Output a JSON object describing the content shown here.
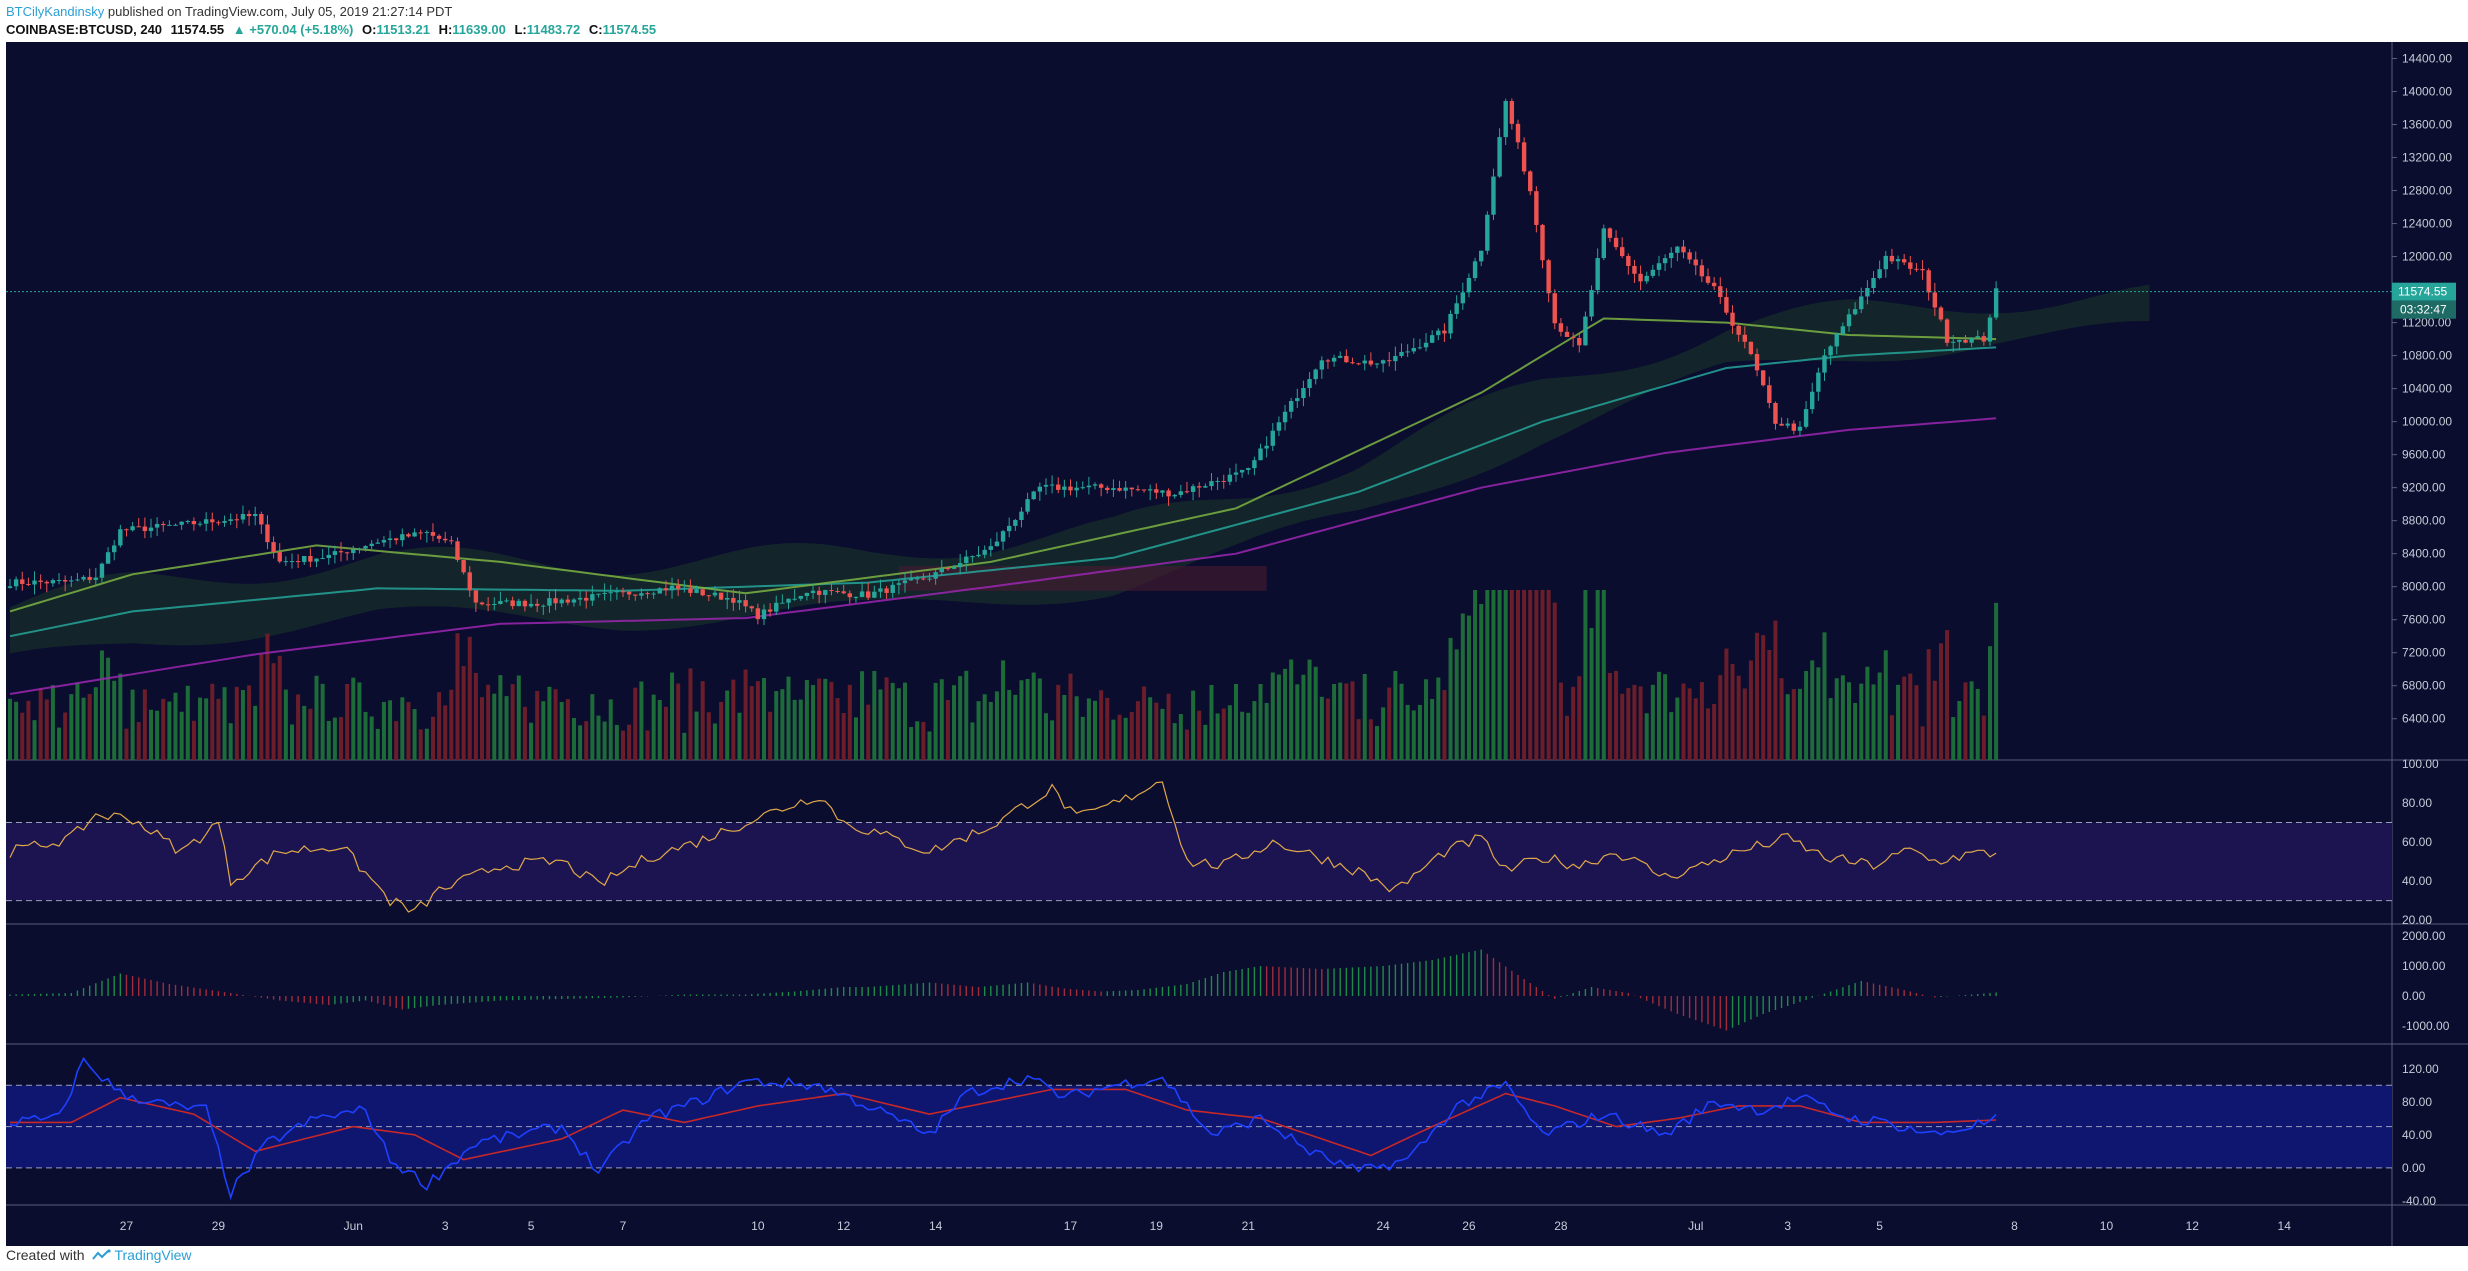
{
  "header": {
    "author": "BTCilyKandinsky",
    "published_text": "published on TradingView.com, July 05, 2019 21:27:14 PDT",
    "symbol": "COINBASE:BTCUSD, 240",
    "last": "11574.55",
    "change": "▲ +570.04 (+5.18%)",
    "open_label": "O:",
    "open": "11513.21",
    "high_label": "H:",
    "high": "11639.00",
    "low_label": "L:",
    "low": "11483.72",
    "close_label": "C:",
    "close": "11574.55"
  },
  "footer": {
    "created_with": "Created with",
    "brand": "TradingView"
  },
  "colors": {
    "background": "#0a0d2e",
    "up": "#26a69a",
    "down": "#ef5350",
    "vol_up": "#1e6b3a",
    "vol_down": "#6b1e2a",
    "rsi": "#e0a84a",
    "ma_purple": "#9c27b0",
    "ma_green": "#7cb342",
    "ma_teal": "#26a69a",
    "osc_blue": "#1e40ff",
    "osc_red": "#c62828",
    "price_tag": "#26a69a"
  },
  "chart_data": {
    "type": "candlestick",
    "price_axis": {
      "ylim": [
        5900,
        14600
      ],
      "ticks": [
        "14400.00",
        "14000.00",
        "13600.00",
        "13200.00",
        "12800.00",
        "12400.00",
        "12000.00",
        "11600.00",
        "11200.00",
        "10800.00",
        "10400.00",
        "10000.00",
        "9600.00",
        "9200.00",
        "8800.00",
        "8400.00",
        "8000.00",
        "7600.00",
        "7200.00",
        "6800.00",
        "6400.00"
      ]
    },
    "x_labels": [
      "27",
      "29",
      "Jun",
      "3",
      "5",
      "7",
      "10",
      "12",
      "14",
      "17",
      "19",
      "21",
      "24",
      "26",
      "28",
      "Jul",
      "3",
      "5",
      "8",
      "10",
      "12",
      "14"
    ],
    "last_price_tag": "11574.55",
    "countdown_tag": "03:32:47",
    "price_anchors": [
      {
        "i": 0,
        "p": 8050
      },
      {
        "i": 10,
        "p": 8060
      },
      {
        "i": 14,
        "p": 8120
      },
      {
        "i": 18,
        "p": 8680
      },
      {
        "i": 28,
        "p": 8750
      },
      {
        "i": 40,
        "p": 8860
      },
      {
        "i": 44,
        "p": 8300
      },
      {
        "i": 52,
        "p": 8370
      },
      {
        "i": 60,
        "p": 8550
      },
      {
        "i": 68,
        "p": 8650
      },
      {
        "i": 72,
        "p": 8510
      },
      {
        "i": 76,
        "p": 7800
      },
      {
        "i": 86,
        "p": 7800
      },
      {
        "i": 96,
        "p": 7880
      },
      {
        "i": 108,
        "p": 7990
      },
      {
        "i": 118,
        "p": 7850
      },
      {
        "i": 122,
        "p": 7650
      },
      {
        "i": 130,
        "p": 7950
      },
      {
        "i": 140,
        "p": 7900
      },
      {
        "i": 150,
        "p": 8120
      },
      {
        "i": 160,
        "p": 8470
      },
      {
        "i": 168,
        "p": 9200
      },
      {
        "i": 180,
        "p": 9200
      },
      {
        "i": 190,
        "p": 9130
      },
      {
        "i": 202,
        "p": 9400
      },
      {
        "i": 208,
        "p": 10100
      },
      {
        "i": 214,
        "p": 10780
      },
      {
        "i": 224,
        "p": 10700
      },
      {
        "i": 234,
        "p": 11100
      },
      {
        "i": 240,
        "p": 12100
      },
      {
        "i": 244,
        "p": 13880
      },
      {
        "i": 248,
        "p": 12800
      },
      {
        "i": 252,
        "p": 11200
      },
      {
        "i": 256,
        "p": 10900
      },
      {
        "i": 260,
        "p": 12300
      },
      {
        "i": 266,
        "p": 11700
      },
      {
        "i": 272,
        "p": 12100
      },
      {
        "i": 278,
        "p": 11600
      },
      {
        "i": 284,
        "p": 10800
      },
      {
        "i": 288,
        "p": 10000
      },
      {
        "i": 292,
        "p": 9900
      },
      {
        "i": 296,
        "p": 10800
      },
      {
        "i": 302,
        "p": 11500
      },
      {
        "i": 306,
        "p": 12000
      },
      {
        "i": 312,
        "p": 11800
      },
      {
        "i": 316,
        "p": 11000
      },
      {
        "i": 322,
        "p": 11000
      },
      {
        "i": 324,
        "p": 11575
      }
    ],
    "date_anchors": [
      {
        "i": 19,
        "d": "27"
      },
      {
        "i": 34,
        "d": "29"
      },
      {
        "i": 56,
        "d": "Jun"
      },
      {
        "i": 71,
        "d": "3"
      },
      {
        "i": 85,
        "d": "5"
      },
      {
        "i": 100,
        "d": "7"
      },
      {
        "i": 122,
        "d": "10"
      },
      {
        "i": 136,
        "d": "12"
      },
      {
        "i": 151,
        "d": "14"
      },
      {
        "i": 173,
        "d": "17"
      },
      {
        "i": 187,
        "d": "19"
      },
      {
        "i": 202,
        "d": "21"
      },
      {
        "i": 224,
        "d": "24"
      },
      {
        "i": 238,
        "d": "26"
      },
      {
        "i": 253,
        "d": "28"
      },
      {
        "i": 275,
        "d": "Jul"
      },
      {
        "i": 290,
        "d": "3"
      },
      {
        "i": 305,
        "d": "5"
      },
      {
        "i": 327,
        "d": "8"
      },
      {
        "i": 342,
        "d": "10"
      },
      {
        "i": 356,
        "d": "12"
      },
      {
        "i": 371,
        "d": "14"
      }
    ],
    "moving_averages": [
      {
        "color": "#9c27b0",
        "points": [
          [
            0,
            6700
          ],
          [
            40,
            7180
          ],
          [
            80,
            7550
          ],
          [
            120,
            7620
          ],
          [
            160,
            8000
          ],
          [
            200,
            8400
          ],
          [
            240,
            9200
          ],
          [
            270,
            9620
          ],
          [
            300,
            9900
          ],
          [
            324,
            10040
          ]
        ]
      },
      {
        "color": "#26a69a",
        "points": [
          [
            0,
            7400
          ],
          [
            20,
            7700
          ],
          [
            60,
            7980
          ],
          [
            100,
            7950
          ],
          [
            140,
            8050
          ],
          [
            180,
            8350
          ],
          [
            220,
            9150
          ],
          [
            250,
            10000
          ],
          [
            280,
            10650
          ],
          [
            300,
            10800
          ],
          [
            324,
            10900
          ]
        ]
      },
      {
        "color": "#7cb342",
        "points": [
          [
            0,
            7700
          ],
          [
            20,
            8150
          ],
          [
            50,
            8500
          ],
          [
            80,
            8300
          ],
          [
            120,
            7920
          ],
          [
            160,
            8300
          ],
          [
            200,
            8950
          ],
          [
            240,
            10350
          ],
          [
            260,
            11250
          ],
          [
            280,
            11200
          ],
          [
            300,
            11050
          ],
          [
            324,
            11000
          ]
        ]
      }
    ],
    "volume_max": 10.0,
    "rsi": {
      "ylim": [
        18,
        102
      ],
      "ticks": [
        "100.00",
        "80.00",
        "60.00",
        "40.00",
        "20.00"
      ],
      "bands": [
        70,
        30
      ],
      "anchors": [
        {
          "i": 0,
          "v": 55
        },
        {
          "i": 10,
          "v": 62
        },
        {
          "i": 14,
          "v": 74
        },
        {
          "i": 20,
          "v": 72
        },
        {
          "i": 28,
          "v": 55
        },
        {
          "i": 34,
          "v": 70
        },
        {
          "i": 36,
          "v": 40
        },
        {
          "i": 44,
          "v": 55
        },
        {
          "i": 54,
          "v": 58
        },
        {
          "i": 58,
          "v": 44
        },
        {
          "i": 62,
          "v": 30
        },
        {
          "i": 66,
          "v": 24
        },
        {
          "i": 70,
          "v": 35
        },
        {
          "i": 80,
          "v": 48
        },
        {
          "i": 90,
          "v": 50
        },
        {
          "i": 96,
          "v": 38
        },
        {
          "i": 104,
          "v": 52
        },
        {
          "i": 112,
          "v": 60
        },
        {
          "i": 124,
          "v": 75
        },
        {
          "i": 132,
          "v": 84
        },
        {
          "i": 136,
          "v": 70
        },
        {
          "i": 142,
          "v": 64
        },
        {
          "i": 150,
          "v": 55
        },
        {
          "i": 160,
          "v": 68
        },
        {
          "i": 166,
          "v": 80
        },
        {
          "i": 170,
          "v": 87
        },
        {
          "i": 174,
          "v": 72
        },
        {
          "i": 182,
          "v": 82
        },
        {
          "i": 188,
          "v": 92
        },
        {
          "i": 192,
          "v": 50
        },
        {
          "i": 198,
          "v": 48
        },
        {
          "i": 206,
          "v": 60
        },
        {
          "i": 212,
          "v": 54
        },
        {
          "i": 220,
          "v": 45
        },
        {
          "i": 226,
          "v": 35
        },
        {
          "i": 234,
          "v": 55
        },
        {
          "i": 240,
          "v": 62
        },
        {
          "i": 244,
          "v": 45
        },
        {
          "i": 250,
          "v": 52
        },
        {
          "i": 256,
          "v": 48
        },
        {
          "i": 262,
          "v": 55
        },
        {
          "i": 270,
          "v": 42
        },
        {
          "i": 276,
          "v": 48
        },
        {
          "i": 282,
          "v": 55
        },
        {
          "i": 290,
          "v": 62
        },
        {
          "i": 296,
          "v": 52
        },
        {
          "i": 304,
          "v": 48
        },
        {
          "i": 310,
          "v": 56
        },
        {
          "i": 314,
          "v": 50
        },
        {
          "i": 320,
          "v": 54
        }
      ]
    },
    "macd_histogram": {
      "ylim": [
        -1600,
        2400
      ],
      "ticks": [
        "2000.00",
        "1000.00",
        "0.00",
        "-1000.00"
      ],
      "anchors": [
        {
          "i": 0,
          "v": 50
        },
        {
          "i": 10,
          "v": 100
        },
        {
          "i": 18,
          "v": 750
        },
        {
          "i": 26,
          "v": 400
        },
        {
          "i": 36,
          "v": 100
        },
        {
          "i": 44,
          "v": -150
        },
        {
          "i": 52,
          "v": -300
        },
        {
          "i": 58,
          "v": -150
        },
        {
          "i": 64,
          "v": -450
        },
        {
          "i": 70,
          "v": -300
        },
        {
          "i": 80,
          "v": -150
        },
        {
          "i": 90,
          "v": -100
        },
        {
          "i": 100,
          "v": -50
        },
        {
          "i": 110,
          "v": 50
        },
        {
          "i": 120,
          "v": 50
        },
        {
          "i": 128,
          "v": 150
        },
        {
          "i": 136,
          "v": 300
        },
        {
          "i": 140,
          "v": 300
        },
        {
          "i": 150,
          "v": 450
        },
        {
          "i": 158,
          "v": 300
        },
        {
          "i": 166,
          "v": 450
        },
        {
          "i": 172,
          "v": 250
        },
        {
          "i": 178,
          "v": 150
        },
        {
          "i": 184,
          "v": 200
        },
        {
          "i": 192,
          "v": 400
        },
        {
          "i": 198,
          "v": 800
        },
        {
          "i": 204,
          "v": 1000
        },
        {
          "i": 214,
          "v": 900
        },
        {
          "i": 224,
          "v": 1000
        },
        {
          "i": 232,
          "v": 1200
        },
        {
          "i": 240,
          "v": 1550
        },
        {
          "i": 246,
          "v": 700
        },
        {
          "i": 252,
          "v": -100
        },
        {
          "i": 258,
          "v": 300
        },
        {
          "i": 264,
          "v": 100
        },
        {
          "i": 272,
          "v": -600
        },
        {
          "i": 280,
          "v": -1150
        },
        {
          "i": 286,
          "v": -600
        },
        {
          "i": 292,
          "v": -200
        },
        {
          "i": 302,
          "v": 500
        },
        {
          "i": 308,
          "v": 250
        },
        {
          "i": 314,
          "v": -50
        },
        {
          "i": 324,
          "v": 120
        }
      ]
    },
    "oscillator": {
      "ylim": [
        -45,
        150
      ],
      "ticks": [
        "120.00",
        "80.00",
        "40.00",
        "0.00",
        "-40.00"
      ],
      "bands": [
        100,
        50,
        0
      ],
      "blue_anchors": [
        {
          "i": 0,
          "v": 55
        },
        {
          "i": 8,
          "v": 60
        },
        {
          "i": 12,
          "v": 130
        },
        {
          "i": 18,
          "v": 90
        },
        {
          "i": 26,
          "v": 75
        },
        {
          "i": 32,
          "v": 70
        },
        {
          "i": 36,
          "v": -30
        },
        {
          "i": 42,
          "v": 30
        },
        {
          "i": 50,
          "v": 60
        },
        {
          "i": 58,
          "v": 70
        },
        {
          "i": 62,
          "v": 10
        },
        {
          "i": 68,
          "v": -20
        },
        {
          "i": 76,
          "v": 30
        },
        {
          "i": 90,
          "v": 50
        },
        {
          "i": 96,
          "v": -5
        },
        {
          "i": 104,
          "v": 60
        },
        {
          "i": 112,
          "v": 80
        },
        {
          "i": 120,
          "v": 105
        },
        {
          "i": 132,
          "v": 100
        },
        {
          "i": 140,
          "v": 75
        },
        {
          "i": 150,
          "v": 40
        },
        {
          "i": 156,
          "v": 90
        },
        {
          "i": 166,
          "v": 110
        },
        {
          "i": 172,
          "v": 85
        },
        {
          "i": 180,
          "v": 100
        },
        {
          "i": 188,
          "v": 110
        },
        {
          "i": 196,
          "v": 40
        },
        {
          "i": 204,
          "v": 60
        },
        {
          "i": 212,
          "v": 20
        },
        {
          "i": 220,
          "v": -5
        },
        {
          "i": 228,
          "v": 10
        },
        {
          "i": 236,
          "v": 75
        },
        {
          "i": 244,
          "v": 100
        },
        {
          "i": 250,
          "v": 40
        },
        {
          "i": 260,
          "v": 65
        },
        {
          "i": 270,
          "v": 40
        },
        {
          "i": 278,
          "v": 80
        },
        {
          "i": 286,
          "v": 70
        },
        {
          "i": 292,
          "v": 85
        },
        {
          "i": 300,
          "v": 60
        },
        {
          "i": 306,
          "v": 55
        },
        {
          "i": 314,
          "v": 40
        },
        {
          "i": 324,
          "v": 58
        }
      ],
      "red_anchors": [
        {
          "i": 0,
          "v": 55
        },
        {
          "i": 10,
          "v": 55
        },
        {
          "i": 18,
          "v": 85
        },
        {
          "i": 30,
          "v": 65
        },
        {
          "i": 40,
          "v": 20
        },
        {
          "i": 56,
          "v": 50
        },
        {
          "i": 66,
          "v": 40
        },
        {
          "i": 74,
          "v": 10
        },
        {
          "i": 90,
          "v": 35
        },
        {
          "i": 100,
          "v": 70
        },
        {
          "i": 110,
          "v": 55
        },
        {
          "i": 122,
          "v": 75
        },
        {
          "i": 136,
          "v": 90
        },
        {
          "i": 150,
          "v": 65
        },
        {
          "i": 160,
          "v": 80
        },
        {
          "i": 170,
          "v": 95
        },
        {
          "i": 182,
          "v": 95
        },
        {
          "i": 192,
          "v": 70
        },
        {
          "i": 204,
          "v": 60
        },
        {
          "i": 212,
          "v": 40
        },
        {
          "i": 222,
          "v": 15
        },
        {
          "i": 232,
          "v": 50
        },
        {
          "i": 244,
          "v": 90
        },
        {
          "i": 252,
          "v": 75
        },
        {
          "i": 262,
          "v": 50
        },
        {
          "i": 272,
          "v": 60
        },
        {
          "i": 282,
          "v": 75
        },
        {
          "i": 292,
          "v": 75
        },
        {
          "i": 302,
          "v": 55
        },
        {
          "i": 314,
          "v": 55
        },
        {
          "i": 324,
          "v": 58
        }
      ]
    }
  }
}
